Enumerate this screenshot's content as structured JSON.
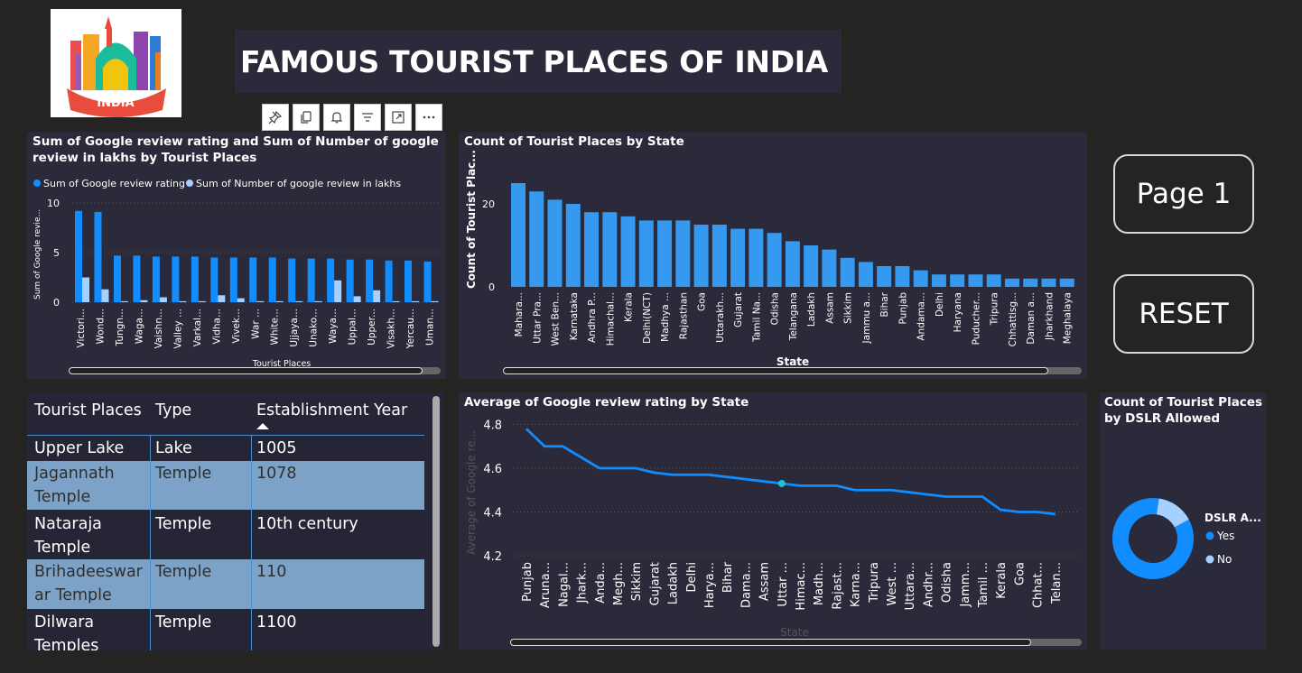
{
  "logo": {
    "text": "INDIA"
  },
  "title": "FAMOUS TOURIST PLACES OF INDIA",
  "toolbar": {
    "icons": [
      "pin-icon",
      "copy-icon",
      "bell-icon",
      "filter-icon",
      "focus-mode-icon",
      "more-options-icon"
    ]
  },
  "buttons": {
    "page1": "Page 1",
    "reset": "RESET"
  },
  "colors": {
    "dark_blue": "#118dff",
    "light_blue": "#a6d0ff",
    "bar_blue": "#3599ef",
    "line_blue": "#118dff",
    "panel": "#2a2a3a",
    "background": "#252423"
  },
  "charts": {
    "review": {
      "title": "Sum of Google review rating and Sum of Number of google review in lakhs by Tourist Places",
      "title_line1": "Sum of Google review rating and Sum of Number of google",
      "title_line2": "review in lakhs by Tourist Places",
      "legend1": "Sum of Google review rating",
      "legend2": "Sum of Number of google review in lakhs",
      "ylabel": "Sum of Google revie...",
      "xlabel": "Tourist Places",
      "yticks": [
        "10",
        "5",
        "0"
      ]
    },
    "count_state": {
      "title": "Count of Tourist Places by State",
      "ylabel": "Count of Tourist Plac...",
      "xlabel": "State",
      "yticks": [
        "20",
        "0"
      ]
    },
    "avg_state": {
      "title": "Average of Google review rating by State",
      "ylabel": "Average of Google re...",
      "xlabel": "State",
      "yticks": [
        "4.8",
        "4.6",
        "4.4",
        "4.2"
      ]
    },
    "dslr": {
      "title_line1": "Count of Tourist Places",
      "title_line2": "by DSLR Allowed",
      "legend_title": "DSLR A...",
      "yes": "Yes",
      "no": "No"
    }
  },
  "chart_data": [
    {
      "type": "bar",
      "title": "Sum of Google review rating and Sum of Number of google review in lakhs by Tourist Places",
      "xlabel": "Tourist Places",
      "ylabel": "Sum of Google revie...",
      "ylim": [
        0,
        10
      ],
      "categories": [
        "Victori...",
        "Wond...",
        "Tungn...",
        "Waga...",
        "Vaishn...",
        "Valley ...",
        "Varkal...",
        "Vidha...",
        "Vivek...",
        "War ...",
        "White...",
        "Ujjaya...",
        "Unako...",
        "Waya...",
        "Uppal...",
        "Upper...",
        "Visakh...",
        "Yercau...",
        "Uman..."
      ],
      "series": [
        {
          "name": "Sum of Google review rating",
          "values": [
            9.2,
            9.1,
            4.7,
            4.7,
            4.6,
            4.6,
            4.6,
            4.5,
            4.5,
            4.5,
            4.5,
            4.4,
            4.4,
            4.4,
            4.3,
            4.3,
            4.2,
            4.2,
            4.1
          ]
        },
        {
          "name": "Sum of Number of google review in lakhs",
          "values": [
            2.5,
            1.3,
            0.1,
            0.2,
            0.5,
            0.1,
            0.1,
            0.7,
            0.4,
            0.1,
            0.1,
            0.1,
            0.1,
            2.2,
            0.6,
            1.2,
            0.1,
            0.1,
            0.1
          ]
        }
      ]
    },
    {
      "type": "bar",
      "title": "Count of Tourist Places by State",
      "xlabel": "State",
      "ylabel": "Count of Tourist Plac...",
      "ylim": [
        0,
        27
      ],
      "categories": [
        "Mahara...",
        "Uttar Pra...",
        "West Ben...",
        "Karnataka",
        "Andhra P...",
        "Himachal...",
        "Kerala",
        "Delhi(NCT)",
        "Madhya ...",
        "Rajasthan",
        "Goa",
        "Uttarakh...",
        "Gujarat",
        "Tamil Na...",
        "Odisha",
        "Telangana",
        "Ladakh",
        "Assam",
        "Sikkim",
        "Jammu a...",
        "Bihar",
        "Punjab",
        "Andama...",
        "Delhi",
        "Haryana",
        "Puducher...",
        "Tripura",
        "Chhattisg...",
        "Daman a...",
        "Jharkhand",
        "Meghalaya"
      ],
      "values": [
        25,
        23,
        21,
        20,
        18,
        18,
        17,
        16,
        16,
        16,
        15,
        15,
        14,
        14,
        13,
        11,
        10,
        9,
        7,
        6,
        5,
        5,
        4,
        3,
        3,
        3,
        3,
        2,
        2,
        2,
        2
      ]
    },
    {
      "type": "line",
      "title": "Average of Google review rating by State",
      "xlabel": "State",
      "ylabel": "Average of Google re...",
      "ylim": [
        4.2,
        4.85
      ],
      "categories": [
        "Punjab",
        "Aruna...",
        "Nagal...",
        "Jhark...",
        "Anda...",
        "Megh...",
        "Sikkim",
        "Gujarat",
        "Ladakh",
        "Delhi",
        "Harya...",
        "Bihar",
        "Dama...",
        "Assam",
        "Uttar ...",
        "Himac...",
        "Madh...",
        "Rajast...",
        "Karna...",
        "Tripura",
        "West ...",
        "Uttara...",
        "Andhr...",
        "Odisha",
        "Jamm...",
        "Tamil ...",
        "Kerala",
        "Goa",
        "Chhat...",
        "Telan..."
      ],
      "values": [
        4.78,
        4.7,
        4.7,
        4.65,
        4.6,
        4.6,
        4.6,
        4.58,
        4.57,
        4.57,
        4.57,
        4.56,
        4.55,
        4.54,
        4.53,
        4.52,
        4.52,
        4.52,
        4.5,
        4.5,
        4.5,
        4.49,
        4.48,
        4.47,
        4.47,
        4.47,
        4.41,
        4.4,
        4.4,
        4.39
      ]
    },
    {
      "type": "pie",
      "title": "Count of Tourist Places by DSLR Allowed",
      "categories": [
        "Yes",
        "No"
      ],
      "values": [
        85,
        15
      ]
    }
  ],
  "table": {
    "headers": [
      "Tourist Places",
      "Type",
      "Establishment Year"
    ],
    "rows": [
      {
        "place": "Upper Lake",
        "type": "Lake",
        "year": "1005"
      },
      {
        "place_l1": "Jagannath",
        "place_l2": "Temple",
        "type": "Temple",
        "year": "1078"
      },
      {
        "place_l1": "Nataraja",
        "place_l2": "Temple",
        "type": "Temple",
        "year": "10th century"
      },
      {
        "place_l1": "Brihadeeswar",
        "place_l2": "ar Temple",
        "type": "Temple",
        "year": "110"
      },
      {
        "place_l1": "Dilwara",
        "place_l2": "Temples",
        "type": "Temple",
        "year": "1100"
      }
    ]
  }
}
